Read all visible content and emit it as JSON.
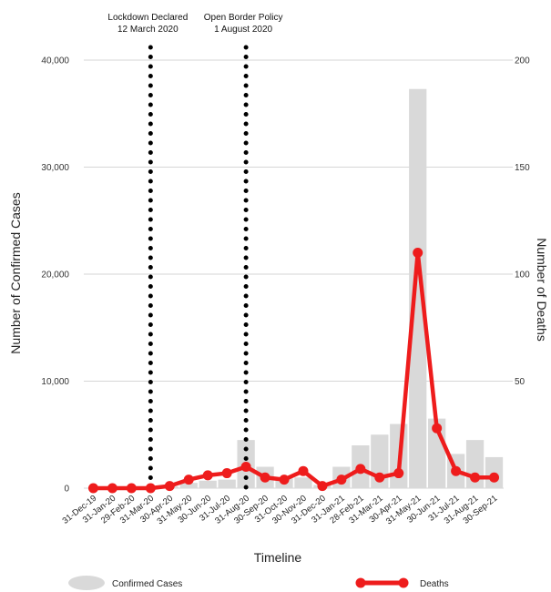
{
  "chart_data": {
    "type": "bar",
    "categories": [
      "31-Dec-19",
      "31-Jan-20",
      "29-Feb-20",
      "31-Mar-20",
      "30-Apr-20",
      "31-May-20",
      "30-Jun-20",
      "31-Jul-20",
      "31-Aug-20",
      "30-Sep-20",
      "31-Oct-20",
      "30-Nov-20",
      "31-Dec-20",
      "31-Jan-21",
      "28-Feb-21",
      "31-Mar-21",
      "30-Apr-21",
      "31-May-21",
      "30-Jun-21",
      "31-Jul-21",
      "31-Aug-21",
      "30-Sep-21"
    ],
    "series": [
      {
        "name": "Confirmed Cases",
        "type": "bar",
        "axis": "left",
        "color": "#d9d9d9",
        "values": [
          0,
          0,
          0,
          0,
          150,
          500,
          700,
          800,
          4500,
          2000,
          900,
          1000,
          300,
          2000,
          4000,
          5000,
          6000,
          37300,
          6500,
          3200,
          4500,
          2900
        ]
      },
      {
        "name": "Deaths",
        "type": "line",
        "axis": "right",
        "color": "#ee1c1c",
        "values": [
          0,
          0,
          0,
          0,
          1,
          4,
          6,
          7,
          10,
          5,
          4,
          8,
          1,
          4,
          9,
          5,
          7,
          110,
          28,
          8,
          5,
          5
        ]
      }
    ],
    "xlabel": "Timeline",
    "ylabel": "Number of Confirmed Cases",
    "y2label": "Number of Deaths",
    "ylim": [
      0,
      40000
    ],
    "y2lim": [
      0,
      200
    ],
    "yticks": [
      "0",
      "10,000",
      "20,000",
      "30,000",
      "40,000"
    ],
    "yticks_values": [
      0,
      10000,
      20000,
      30000,
      40000
    ],
    "y2ticks": [
      "50",
      "100",
      "150",
      "200"
    ],
    "y2ticks_values": [
      50,
      100,
      150,
      200
    ],
    "grid": true,
    "legend_position": "bottom",
    "annotations": [
      {
        "line1": "Lockdown Declared",
        "line2": "12 March 2020",
        "x_category": "31-Mar-20"
      },
      {
        "line1": "Open Border Policy",
        "line2": "1 August 2020",
        "x_category": "31-Aug-20"
      }
    ]
  }
}
